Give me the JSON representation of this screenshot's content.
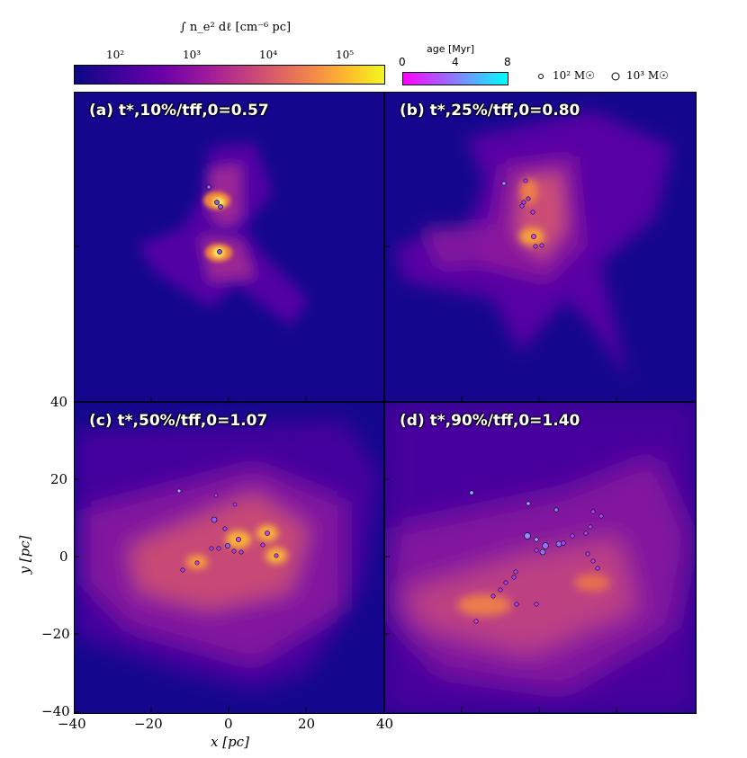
{
  "colorbar_density": {
    "label": "∫ n_e² dℓ [cm⁻⁶ pc]",
    "ticks": [
      "10²",
      "10³",
      "10⁴",
      "10⁵"
    ],
    "colors": [
      "#0c0786",
      "#6a00a8",
      "#b12a90",
      "#e16462",
      "#fca636",
      "#f0f921"
    ]
  },
  "colorbar_age": {
    "label": "age [Myr]",
    "ticks": [
      "0",
      "4",
      "8"
    ],
    "colors": [
      "#ff00ff",
      "#8080ff",
      "#00ffff"
    ]
  },
  "legend": {
    "small_label": "10² M☉",
    "large_label": "10³ M☉"
  },
  "panels": [
    {
      "label": "(a) t*,10%/tff,0=0.57"
    },
    {
      "label": "(b) t*,25%/tff,0=0.80"
    },
    {
      "label": "(c) t*,50%/tff,0=1.07"
    },
    {
      "label": "(d) t*,90%/tff,0=1.40"
    }
  ],
  "axes": {
    "xlabel": "x [pc]",
    "ylabel": "y [pc]",
    "xticks": [
      "−40",
      "−20",
      "0",
      "20",
      "40"
    ],
    "yticks": [
      "40",
      "20",
      "0",
      "−20",
      "−40"
    ]
  }
}
